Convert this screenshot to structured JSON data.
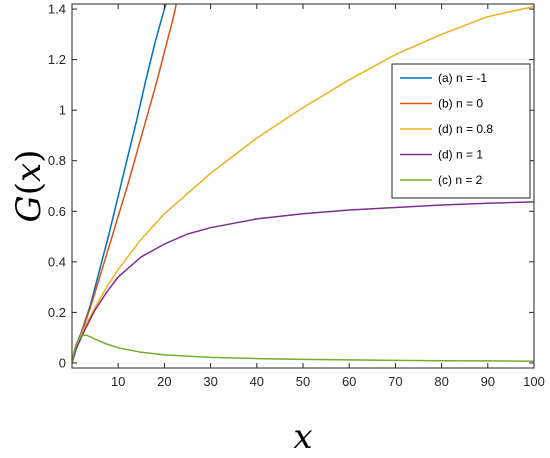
{
  "chart_data": {
    "type": "line",
    "title": "",
    "xlabel_base": "x",
    "ylabel_func": "G",
    "ylabel_arg": "x",
    "xlim": [
      0,
      100
    ],
    "ylim": [
      -0.02,
      1.42
    ],
    "x_ticks": [
      10,
      20,
      30,
      40,
      50,
      60,
      70,
      80,
      90,
      100
    ],
    "y_ticks": [
      0,
      0.2,
      0.4,
      0.6,
      0.8,
      1,
      1.2,
      1.4
    ],
    "x_tick_labels": [
      "10",
      "20",
      "30",
      "40",
      "50",
      "60",
      "70",
      "80",
      "90",
      "100"
    ],
    "y_tick_labels": [
      "0",
      "0.2",
      "0.4",
      "0.6",
      "0.8",
      "1",
      "1.2",
      "1.4"
    ],
    "grid": false,
    "legend_position": "top-right",
    "series": [
      {
        "name": "(a)  n = -1",
        "color": "#0072BD",
        "x": [
          0,
          1,
          2,
          4,
          6,
          8,
          10,
          12,
          14,
          16,
          18,
          20,
          20.6
        ],
        "y": [
          0,
          0.075,
          0.12,
          0.23,
          0.37,
          0.51,
          0.66,
          0.81,
          0.96,
          1.12,
          1.27,
          1.4,
          1.44
        ]
      },
      {
        "name": "(b)  n = 0",
        "color": "#D95319",
        "x": [
          0,
          1,
          2,
          4,
          6,
          8,
          10,
          12,
          14,
          16,
          18,
          20,
          22,
          22.8
        ],
        "y": [
          0,
          0.07,
          0.115,
          0.22,
          0.34,
          0.46,
          0.58,
          0.7,
          0.83,
          0.96,
          1.09,
          1.23,
          1.37,
          1.44
        ]
      },
      {
        "name": "(d)  n = 0.8",
        "color": "#EDB120",
        "x": [
          0,
          1,
          2,
          3,
          5,
          7.5,
          10,
          15,
          20,
          25,
          30,
          40,
          50,
          60,
          70,
          80,
          90,
          100
        ],
        "y": [
          0,
          0.065,
          0.11,
          0.15,
          0.22,
          0.3,
          0.37,
          0.49,
          0.59,
          0.67,
          0.75,
          0.89,
          1.01,
          1.12,
          1.22,
          1.3,
          1.37,
          1.41
        ]
      },
      {
        "name": "(d)  n = 1",
        "color": "#7E2F8E",
        "x": [
          0,
          1,
          2,
          3,
          5,
          7.5,
          10,
          15,
          20,
          25,
          30,
          40,
          50,
          60,
          70,
          80,
          90,
          100
        ],
        "y": [
          0,
          0.06,
          0.1,
          0.14,
          0.21,
          0.28,
          0.34,
          0.42,
          0.47,
          0.51,
          0.535,
          0.57,
          0.59,
          0.605,
          0.615,
          0.625,
          0.632,
          0.637
        ]
      },
      {
        "name": "(c)  n = 2",
        "color": "#77AC30",
        "x": [
          0,
          0.5,
          1,
          2,
          3,
          4,
          5,
          7.5,
          10,
          15,
          20,
          30,
          40,
          50,
          60,
          70,
          80,
          90,
          100
        ],
        "y": [
          0,
          0.05,
          0.08,
          0.107,
          0.11,
          0.103,
          0.094,
          0.075,
          0.06,
          0.042,
          0.032,
          0.022,
          0.017,
          0.014,
          0.012,
          0.01,
          0.009,
          0.008,
          0.007
        ]
      }
    ]
  }
}
